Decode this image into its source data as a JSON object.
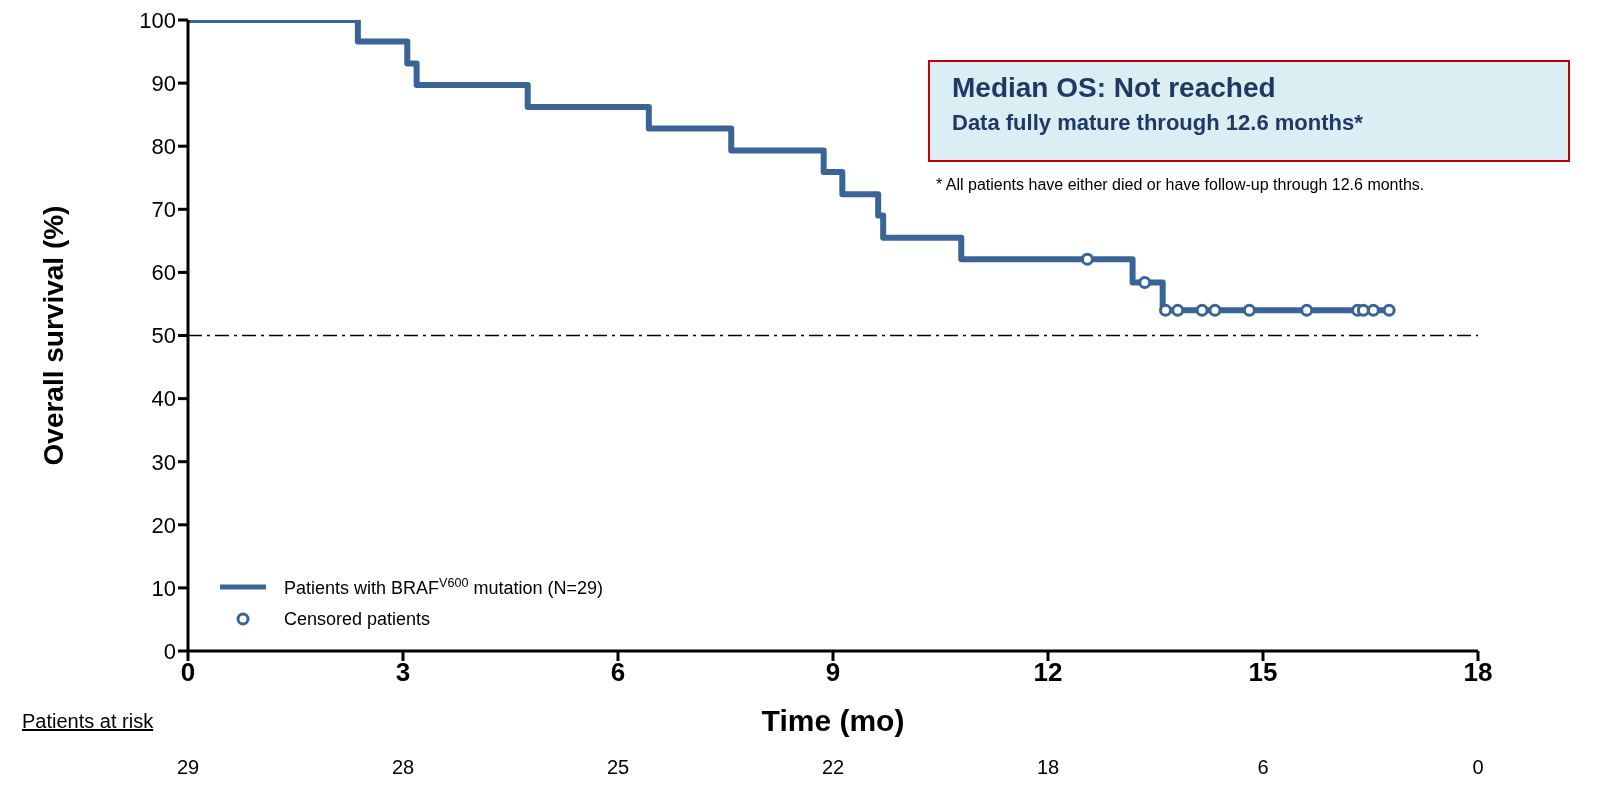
{
  "chart_data": {
    "type": "step",
    "title": "Median OS: Not reached",
    "subtitle": "Data fully mature through 12.6 months*",
    "xlabel": "Time (mo)",
    "ylabel": "Overall survival (%)",
    "xlim": [
      0,
      18
    ],
    "xticks": [
      0,
      3,
      6,
      9,
      12,
      15,
      18
    ],
    "ylim": [
      0,
      100
    ],
    "yticks": [
      0,
      10,
      20,
      30,
      40,
      50,
      60,
      70,
      80,
      90,
      100
    ],
    "grid": false,
    "legend": "bottom left",
    "series": [
      {
        "name": "Patients with BRAF$^{V600}$ mutation (N=29)",
        "color": "#3a6495",
        "marker": "none",
        "line_style": "solid",
        "x": [
          0,
          2.37,
          3.06,
          3.19,
          4.74,
          6.43,
          7.58,
          8.87,
          9.13,
          9.63,
          9.7,
          10.79,
          13.18,
          13.6,
          16.8
        ],
        "values": [
          100,
          96.6,
          93.1,
          89.7,
          86.2,
          82.8,
          79.3,
          75.9,
          72.4,
          69,
          65.5,
          62.1,
          58.4,
          54,
          54
        ]
      },
      {
        "name": "Censored patients",
        "type": "scatter",
        "color": "#3a6495",
        "marker": "circle",
        "x": [
          12.55,
          13.35,
          13.64,
          13.81,
          14.15,
          14.33,
          14.81,
          15.61,
          16.32,
          16.4,
          16.54,
          16.76
        ],
        "values": [
          62.1,
          58.4,
          54,
          54,
          54,
          54,
          54,
          54,
          54,
          54,
          54,
          54
        ]
      }
    ],
    "ref_lines": [
      {
        "axis": "y",
        "value": 50,
        "color": "#000000",
        "line_style": "dashdot"
      }
    ],
    "annotations": [
      "* All patients have either died or have follow-up through 12.6 months.",
      "Patients at risk",
      "29",
      "28",
      "25",
      "22",
      "18",
      "6",
      "0"
    ]
  }
}
